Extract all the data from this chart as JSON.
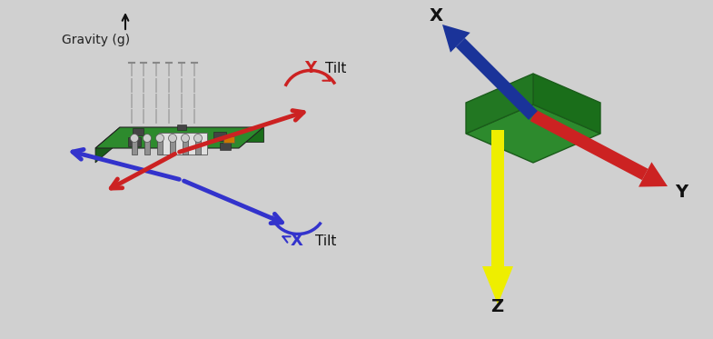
{
  "bg_color": "#d0d0d0",
  "left_panel": {
    "board_color": "#2d8a2d",
    "board_shadow": "#1a5c1a",
    "board_front": "#1a6e1a",
    "x_arrow_color": "#3333cc",
    "y_arrow_color": "#cc2222",
    "tilt_x_color": "#3333cc",
    "tilt_y_color": "#cc2222",
    "gravity_text": "Gravity (g)",
    "gravity_color": "#222222",
    "x_label": "X",
    "y_label": "Y",
    "tilt_label": "Tilt",
    "pin_color": "#aaaaaa",
    "chip_color": "#444444",
    "ic_color": "#e0e0e0",
    "led_color": "#cc7700"
  },
  "right_panel": {
    "board_color": "#2d8a2d",
    "board_dark": "#1a6e1a",
    "board_mid": "#227722",
    "z_arrow_color": "#eeee00",
    "y_arrow_color": "#cc2222",
    "x_arrow_color": "#1a3399",
    "z_label": "Z",
    "y_label": "Y",
    "x_label": "X"
  }
}
